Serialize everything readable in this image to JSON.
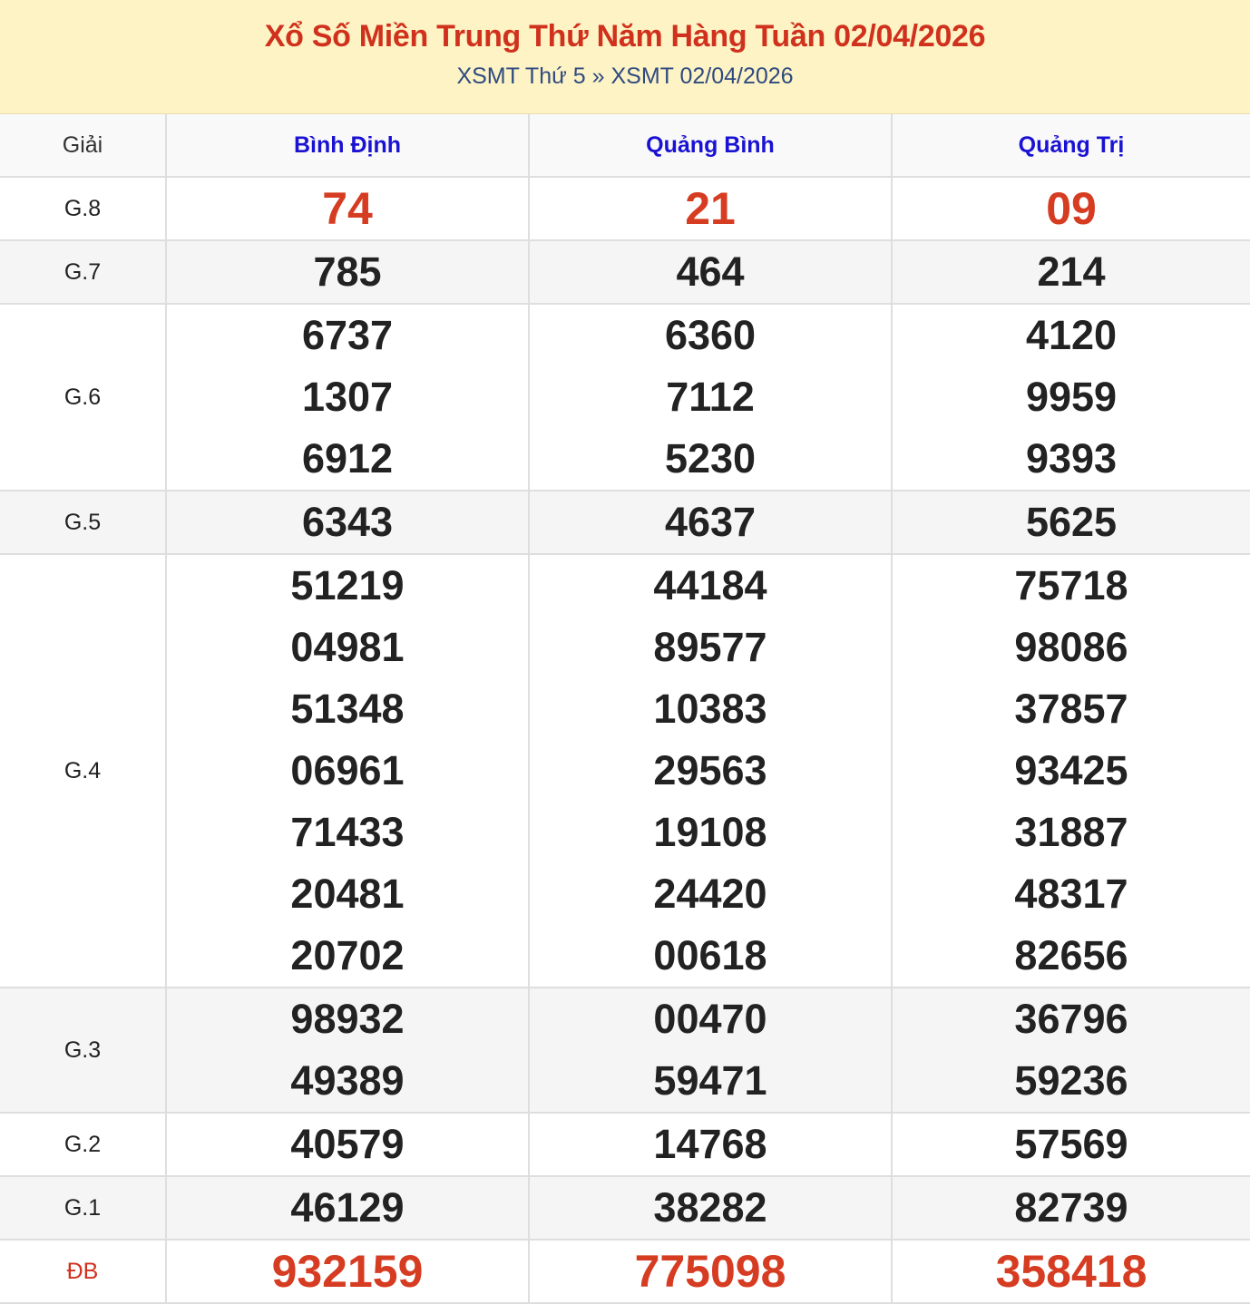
{
  "header": {
    "title": "Xổ Số Miền Trung Thứ Năm Hàng Tuần 02/04/2026",
    "breadcrumb": [
      "XSMT Thứ 5",
      "»",
      "XSMT 02/04/2026"
    ]
  },
  "table": {
    "columns": [
      "Giải",
      "Bình Định",
      "Quảng Bình",
      "Quảng Trị"
    ],
    "rows": [
      {
        "label": "G.8",
        "highlight": true,
        "values": [
          [
            "74"
          ],
          [
            "21"
          ],
          [
            "09"
          ]
        ]
      },
      {
        "label": "G.7",
        "values": [
          [
            "785"
          ],
          [
            "464"
          ],
          [
            "214"
          ]
        ]
      },
      {
        "label": "G.6",
        "values": [
          [
            "6737",
            "1307",
            "6912"
          ],
          [
            "6360",
            "7112",
            "5230"
          ],
          [
            "4120",
            "9959",
            "9393"
          ]
        ]
      },
      {
        "label": "G.5",
        "values": [
          [
            "6343"
          ],
          [
            "4637"
          ],
          [
            "5625"
          ]
        ]
      },
      {
        "label": "G.4",
        "values": [
          [
            "51219",
            "04981",
            "51348",
            "06961",
            "71433",
            "20481",
            "20702"
          ],
          [
            "44184",
            "89577",
            "10383",
            "29563",
            "19108",
            "24420",
            "00618"
          ],
          [
            "75718",
            "98086",
            "37857",
            "93425",
            "31887",
            "48317",
            "82656"
          ]
        ]
      },
      {
        "label": "G.3",
        "values": [
          [
            "98932",
            "49389"
          ],
          [
            "00470",
            "59471"
          ],
          [
            "36796",
            "59236"
          ]
        ]
      },
      {
        "label": "G.2",
        "values": [
          [
            "40579"
          ],
          [
            "14768"
          ],
          [
            "57569"
          ]
        ]
      },
      {
        "label": "G.1",
        "values": [
          [
            "46129"
          ],
          [
            "38282"
          ],
          [
            "82739"
          ]
        ]
      },
      {
        "label": "ĐB",
        "highlight": true,
        "values": [
          [
            "932159"
          ],
          [
            "775098"
          ],
          [
            "358418"
          ]
        ]
      }
    ]
  },
  "colors": {
    "title": "#d0311d",
    "header_bg": "#fdf3c4",
    "province": "#1a12d2",
    "highlight_number": "#d63c21"
  }
}
